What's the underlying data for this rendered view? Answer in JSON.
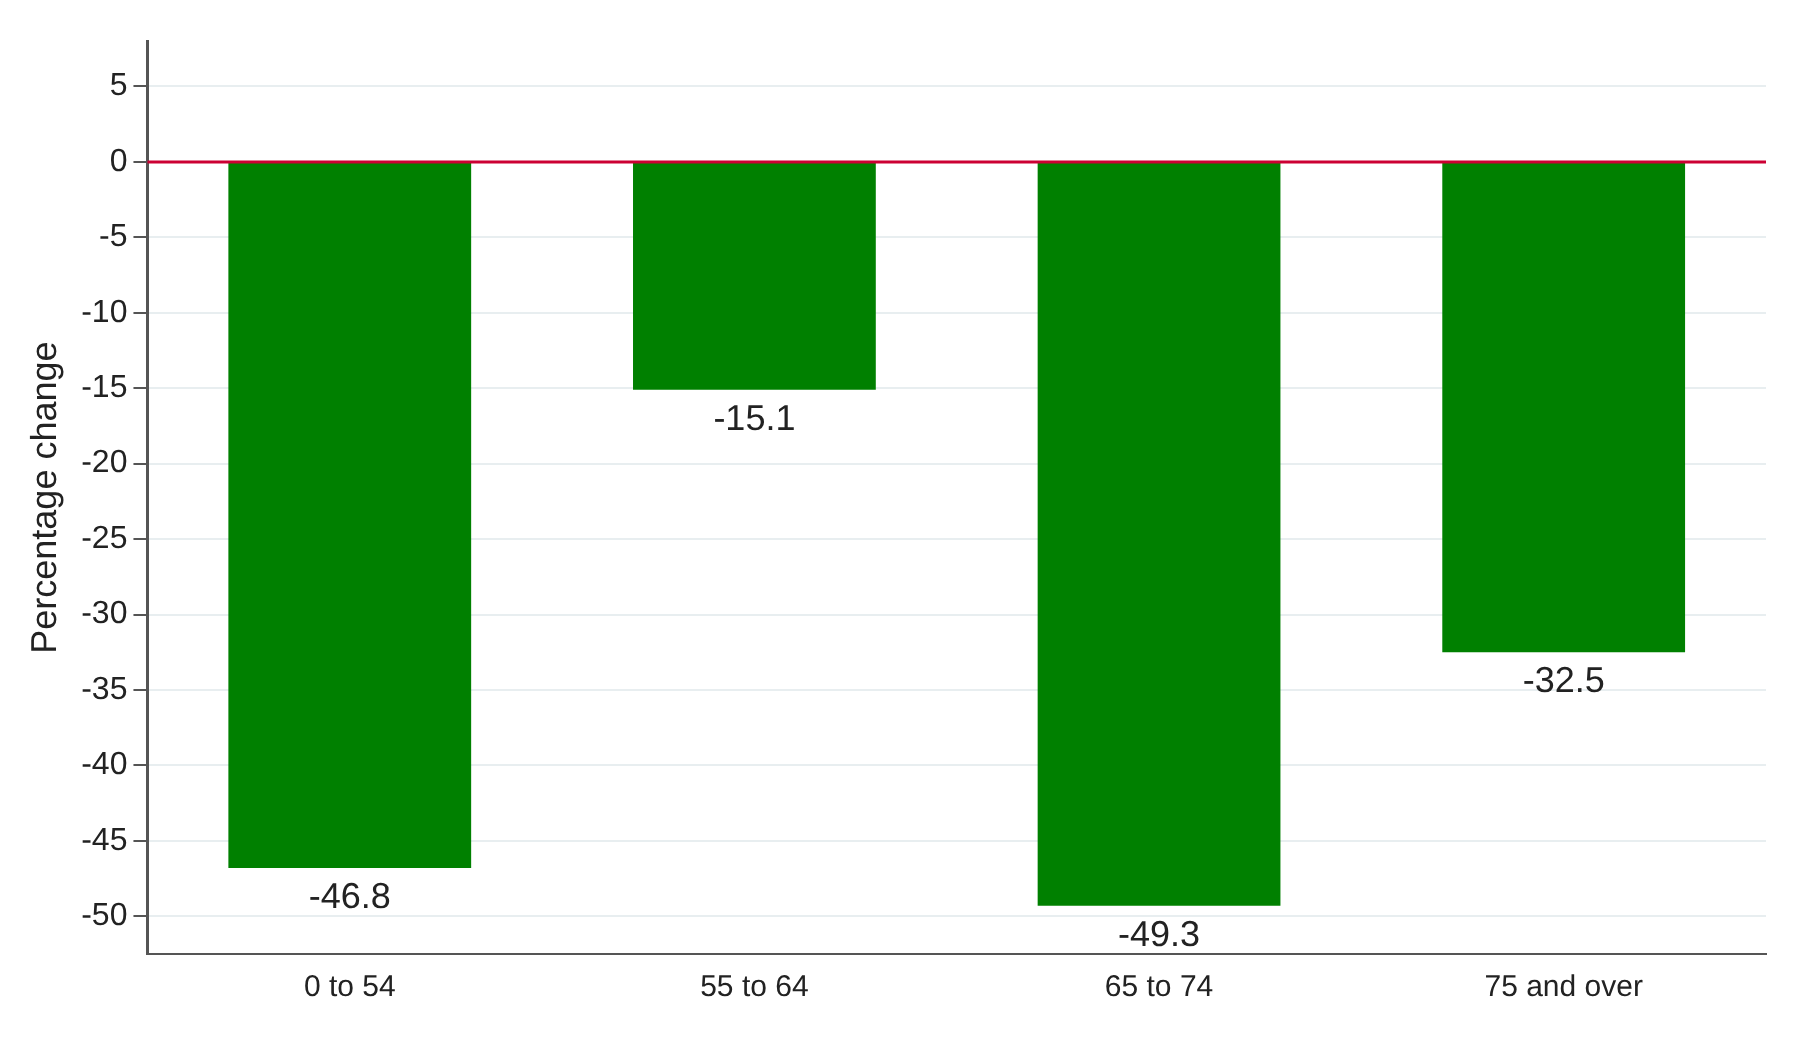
{
  "chart_data": {
    "type": "bar",
    "ylabel": "Percentage change",
    "categories": [
      "0 to 54",
      "55 to 64",
      "65 to 74",
      "75 and over"
    ],
    "values": [
      -46.8,
      -15.1,
      -49.3,
      -32.5
    ],
    "color": "#008000",
    "data_labels": true,
    "ylim": [
      -52.5,
      8
    ],
    "yticks": [
      -50,
      -45,
      -40,
      -35,
      -30,
      -25,
      -20,
      -15,
      -10,
      -5,
      0,
      5
    ],
    "grid": "y",
    "ref_lines": [
      {
        "axis": "y",
        "value": 0,
        "color": "#cc0033"
      }
    ]
  }
}
